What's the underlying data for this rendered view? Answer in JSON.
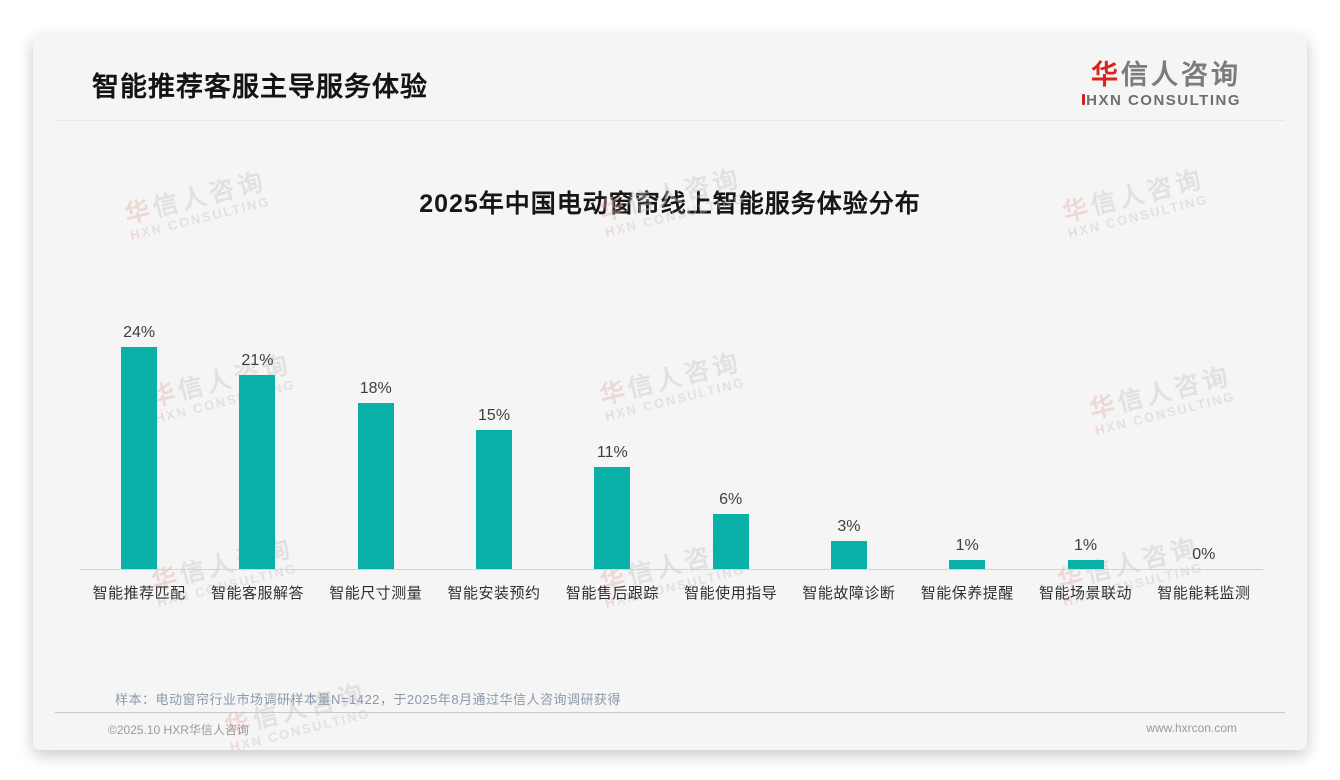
{
  "header": {
    "title": "智能推荐客服主导服务体验"
  },
  "logo": {
    "cn_first": "华",
    "cn_rest": "信人咨询",
    "en": "HXN CONSULTING"
  },
  "chart_data": {
    "type": "bar",
    "title": "2025年中国电动窗帘线上智能服务体验分布",
    "categories": [
      "智能推荐匹配",
      "智能客服解答",
      "智能尺寸测量",
      "智能安装预约",
      "智能售后跟踪",
      "智能使用指导",
      "智能故障诊断",
      "智能保养提醒",
      "智能场景联动",
      "智能能耗监测"
    ],
    "values": [
      24,
      21,
      18,
      15,
      11,
      6,
      3,
      1,
      1,
      0
    ],
    "data_labels": [
      "24%",
      "21%",
      "18%",
      "15%",
      "11%",
      "6%",
      "3%",
      "1%",
      "1%",
      "0%"
    ],
    "unit": "%",
    "xlabel": "",
    "ylabel": "",
    "ylim": [
      0,
      26
    ],
    "grid": false,
    "legend_position": "none",
    "bar_color": "#09b0a7"
  },
  "footnote": {
    "text": "样本：电动窗帘行业市场调研样本量N=1422，于2025年8月通过华信人咨询调研获得"
  },
  "footer": {
    "copyright": "©2025.10 HXR华信人咨询",
    "website": "www.hxrcon.com"
  },
  "watermark": {
    "line1_first": "华",
    "line1_rest": "信人咨询",
    "line2_first": "H",
    "line2_rest": "XN CONSULTING"
  }
}
